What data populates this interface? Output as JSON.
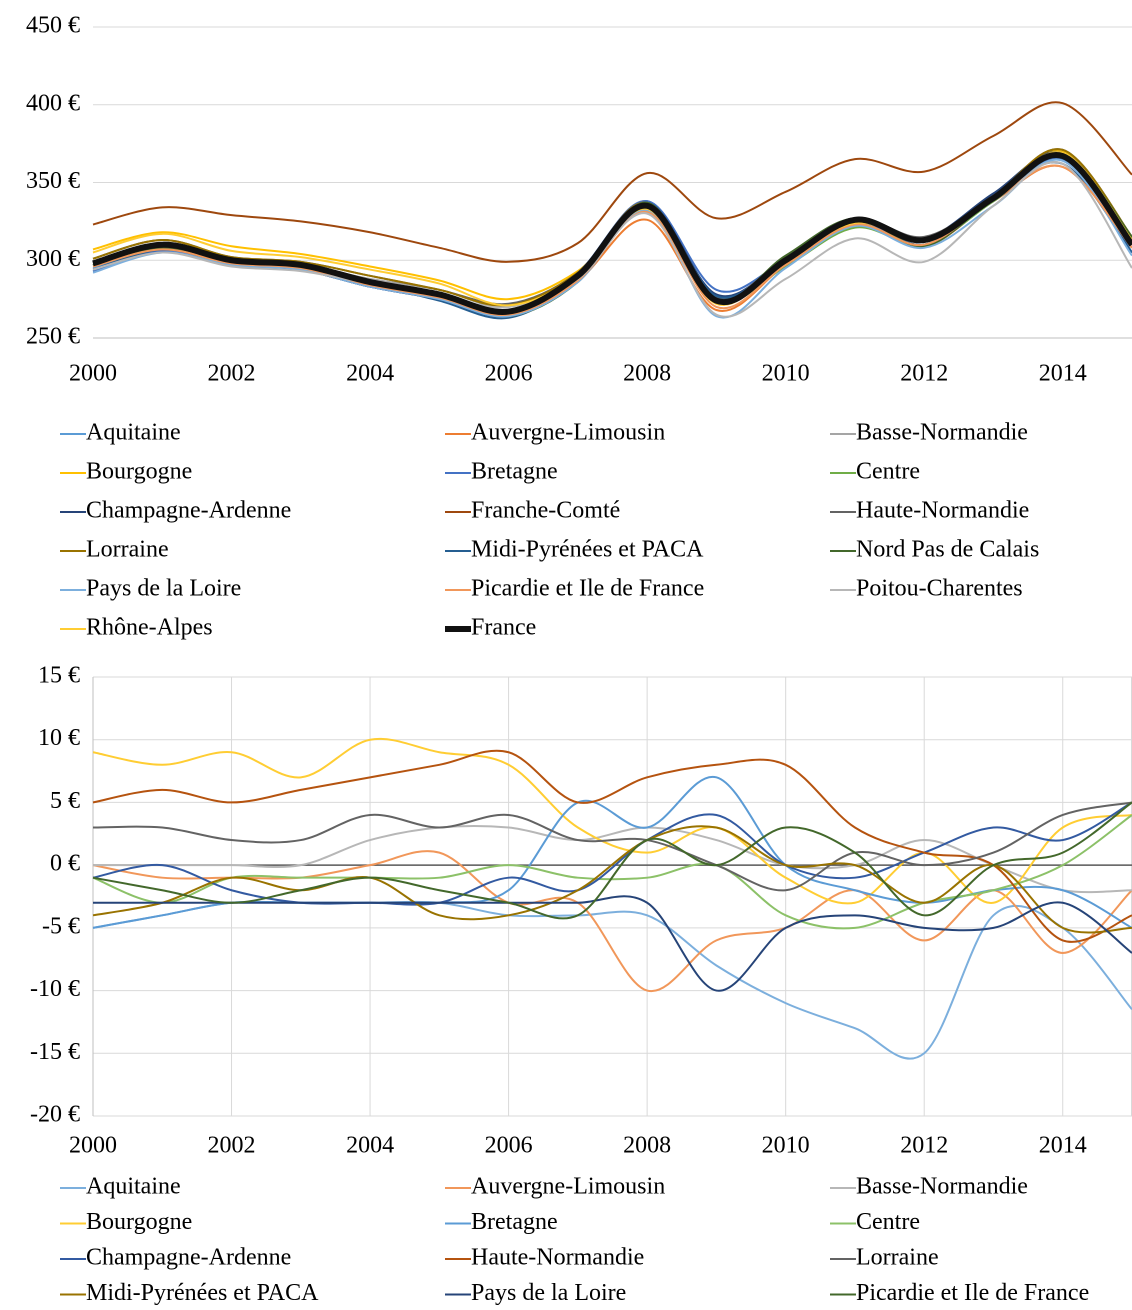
{
  "chart_data": [
    {
      "type": "line",
      "x": [
        2000,
        2001,
        2002,
        2003,
        2004,
        2005,
        2006,
        2007,
        2008,
        2009,
        2010,
        2011,
        2012,
        2013,
        2014,
        2015
      ],
      "xlim": [
        2000,
        2015
      ],
      "xticks": [
        2000,
        2002,
        2004,
        2006,
        2008,
        2010,
        2012,
        2014
      ],
      "ylim": [
        250,
        450
      ],
      "yticks": [
        {
          "value": 250,
          "label": "250 €"
        },
        {
          "value": 300,
          "label": "300 €"
        },
        {
          "value": 350,
          "label": "350 €"
        },
        {
          "value": 400,
          "label": "400 €"
        },
        {
          "value": 450,
          "label": "450 €"
        }
      ],
      "grid": true,
      "xgrid": false,
      "legend": "bottom",
      "series": [
        {
          "name": "Aquitaine",
          "color": "#5b9bd5",
          "values": [
            295,
            307,
            297,
            294,
            283,
            275,
            264,
            287,
            332,
            276,
            299,
            323,
            310,
            338,
            364,
            305
          ]
        },
        {
          "name": "Auvergne-Limousin",
          "color": "#ed7d31",
          "values": [
            297,
            308,
            299,
            296,
            285,
            277,
            266,
            287,
            326,
            268,
            297,
            324,
            309,
            338,
            360,
            308
          ]
        },
        {
          "name": "Basse-Normandie",
          "color": "#a5a5a5",
          "values": [
            298,
            310,
            300,
            297,
            288,
            281,
            270,
            292,
            338,
            276,
            300,
            326,
            314,
            340,
            366,
            308
          ]
        },
        {
          "name": "Bourgogne",
          "color": "#ffc000",
          "values": [
            307,
            318,
            309,
            304,
            296,
            287,
            275,
            293,
            333,
            277,
            299,
            323,
            314,
            338,
            370,
            314
          ]
        },
        {
          "name": "Bretagne",
          "color": "#4472c4",
          "values": [
            293,
            306,
            297,
            294,
            283,
            275,
            265,
            292,
            338,
            281,
            300,
            324,
            310,
            338,
            365,
            305
          ]
        },
        {
          "name": "Centre",
          "color": "#70ad47",
          "values": [
            297,
            307,
            299,
            296,
            285,
            277,
            267,
            289,
            334,
            274,
            296,
            321,
            310,
            338,
            367,
            314
          ]
        },
        {
          "name": "Champagne-Ardenne",
          "color": "#264478",
          "values": [
            297,
            310,
            298,
            294,
            283,
            275,
            266,
            288,
            337,
            278,
            300,
            325,
            314,
            343,
            369,
            315
          ]
        },
        {
          "name": "Franche-Comté",
          "color": "#9e480e",
          "values": [
            323,
            334,
            329,
            325,
            318,
            308,
            299,
            311,
            356,
            327,
            344,
            365,
            357,
            380,
            401,
            355
          ]
        },
        {
          "name": "Haute-Normandie",
          "color": "#636363",
          "values": [
            301,
            313,
            302,
            299,
            290,
            281,
            272,
            292,
            337,
            276,
            302,
            327,
            315,
            341,
            371,
            315
          ]
        },
        {
          "name": "Lorraine",
          "color": "#997300",
          "values": [
            301,
            313,
            302,
            299,
            290,
            281,
            271,
            292,
            337,
            274,
            298,
            327,
            313,
            341,
            371,
            315
          ]
        },
        {
          "name": "Midi-Pyrénées et PACA",
          "color": "#255e91",
          "values": [
            294,
            307,
            299,
            295,
            285,
            274,
            263,
            288,
            337,
            277,
            300,
            326,
            310,
            340,
            362,
            305
          ]
        },
        {
          "name": "Nord Pas de Calais",
          "color": "#43682b",
          "values": [
            297,
            308,
            297,
            295,
            285,
            276,
            264,
            286,
            337,
            274,
            303,
            327,
            309,
            340,
            368,
            315
          ]
        },
        {
          "name": "Pays de la Loire",
          "color": "#7cafdd",
          "values": [
            292,
            305,
            297,
            294,
            283,
            275,
            264,
            286,
            332,
            264,
            295,
            322,
            308,
            335,
            364,
            303
          ]
        },
        {
          "name": "Picardie et Ile de France",
          "color": "#f1975a",
          "values": [
            296,
            307,
            298,
            295,
            284,
            276,
            265,
            287,
            331,
            270,
            297,
            323,
            310,
            339,
            360,
            308
          ]
        },
        {
          "name": "Poitou-Charentes",
          "color": "#b7b7b7",
          "values": [
            294,
            305,
            296,
            293,
            285,
            277,
            270,
            288,
            330,
            265,
            288,
            314,
            299,
            335,
            362,
            295
          ]
        },
        {
          "name": "Rhône-Alpes",
          "color": "#ffcd33",
          "values": [
            305,
            317,
            306,
            302,
            294,
            285,
            271,
            290,
            333,
            272,
            300,
            324,
            314,
            340,
            369,
            313
          ]
        },
        {
          "name": "France",
          "color": "#111111",
          "width": 6,
          "values": [
            298,
            310,
            300,
            297,
            286,
            278,
            267,
            290,
            335,
            274,
            300,
            326,
            313,
            340,
            367,
            310
          ]
        }
      ]
    },
    {
      "type": "line",
      "x": [
        2000,
        2001,
        2002,
        2003,
        2004,
        2005,
        2006,
        2007,
        2008,
        2009,
        2010,
        2011,
        2012,
        2013,
        2014,
        2015
      ],
      "xlim": [
        2000,
        2015
      ],
      "xticks": [
        2000,
        2002,
        2004,
        2006,
        2008,
        2010,
        2012,
        2014
      ],
      "ylim": [
        -20,
        15
      ],
      "yticks": [
        {
          "value": -20,
          "label": "-20 €"
        },
        {
          "value": -15,
          "label": "-15 €"
        },
        {
          "value": -10,
          "label": "-10 €"
        },
        {
          "value": -5,
          "label": "-5 €"
        },
        {
          "value": 0,
          "label": "0 €"
        },
        {
          "value": 5,
          "label": "5 €"
        },
        {
          "value": 10,
          "label": "10 €"
        },
        {
          "value": 15,
          "label": "15 €"
        }
      ],
      "grid": true,
      "xgrid": true,
      "legend": "bottom",
      "series": [
        {
          "name": "Aquitaine",
          "color": "#7cafdd",
          "values": [
            -5,
            -4,
            -3,
            -3,
            -3,
            -3,
            -4,
            -4,
            -4,
            -8,
            -11,
            -13,
            -15,
            -4,
            -5,
            -11.5
          ]
        },
        {
          "name": "Auvergne-Limousin",
          "color": "#f1975a",
          "values": [
            0,
            -1,
            -1,
            -1,
            0,
            1,
            -3,
            -3,
            -10,
            -6,
            -5,
            -2,
            -6,
            -2,
            -7,
            -2
          ]
        },
        {
          "name": "Basse-Normandie",
          "color": "#b7b7b7",
          "values": [
            0,
            0,
            0,
            0,
            2,
            3,
            3,
            2,
            3,
            2,
            0,
            0,
            2,
            0,
            -2,
            -2
          ]
        },
        {
          "name": "Bourgogne",
          "color": "#ffcd33",
          "values": [
            9,
            8,
            9,
            7,
            10,
            9,
            8,
            3,
            1,
            3,
            -1,
            -3,
            1,
            -3,
            3,
            4
          ]
        },
        {
          "name": "Bretagne",
          "color": "#5b9bd5",
          "values": [
            -5,
            -4,
            -3,
            -3,
            -3,
            -3,
            -2,
            5,
            3,
            7,
            0,
            -2,
            -3,
            -2,
            -2,
            -5
          ]
        },
        {
          "name": "Centre",
          "color": "#8cc168",
          "values": [
            -1,
            -3,
            -1,
            -1,
            -1,
            -1,
            0,
            -1,
            -1,
            0,
            -4,
            -5,
            -3,
            -2,
            0,
            4
          ]
        },
        {
          "name": "Champagne-Ardenne",
          "color": "#335aa1",
          "values": [
            -1,
            0,
            -2,
            -3,
            -3,
            -3,
            -1,
            -2,
            2,
            4,
            0,
            -1,
            1,
            3,
            2,
            5
          ]
        },
        {
          "name": "Haute-Normandie",
          "color": "#b5530f",
          "values": [
            5,
            6,
            5,
            6,
            7,
            8,
            9,
            5,
            7,
            8,
            8,
            3,
            1,
            0,
            -6,
            -4
          ]
        },
        {
          "name": "Lorraine",
          "color": "#636363",
          "values": [
            3,
            3,
            2,
            2,
            4,
            3,
            4,
            2,
            2,
            0,
            -2,
            1,
            0,
            1,
            4,
            5
          ]
        },
        {
          "name": "Midi-Pyrénées et PACA",
          "color": "#997300",
          "values": [
            -4,
            -3,
            -1,
            -2,
            -1,
            -4,
            -4,
            -2,
            2,
            3,
            0,
            0,
            -3,
            0,
            -5,
            -5
          ]
        },
        {
          "name": "Pays de la Loire",
          "color": "#264478",
          "values": [
            -3,
            -3,
            -3,
            -3,
            -3,
            -3,
            -3,
            -3,
            -3,
            -10,
            -5,
            -4,
            -5,
            -5,
            -3,
            -7
          ]
        },
        {
          "name": "Picardie et Ile de France",
          "color": "#43682b",
          "values": [
            -1,
            -2,
            -3,
            -2,
            -1,
            -2,
            -3,
            -4,
            2,
            0,
            3,
            1,
            -4,
            0,
            1,
            5
          ]
        }
      ]
    }
  ]
}
